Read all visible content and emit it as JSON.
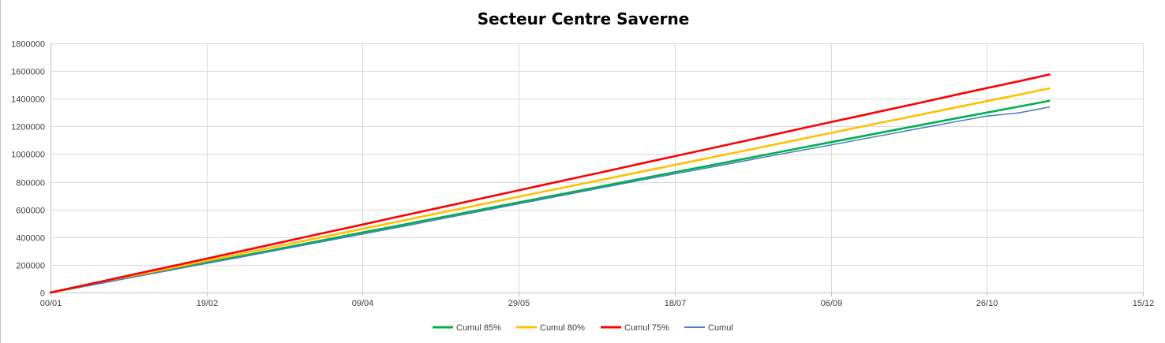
{
  "chart_data": {
    "type": "line",
    "title": "Secteur Centre Saverne",
    "xlabel": "",
    "ylabel": "",
    "x_tick_labels": [
      "00/01",
      "19/02",
      "09/04",
      "29/05",
      "18/07",
      "06/09",
      "26/10",
      "15/12"
    ],
    "x_tick_days": [
      0,
      50,
      100,
      150,
      200,
      250,
      300,
      350
    ],
    "xlim": [
      0,
      350
    ],
    "y_tick_labels": [
      "0",
      "200000",
      "400000",
      "600000",
      "800000",
      "1000000",
      "1200000",
      "1400000",
      "1600000",
      "1800000"
    ],
    "y_tick_values": [
      0,
      200000,
      400000,
      600000,
      800000,
      1000000,
      1200000,
      1400000,
      1600000,
      1800000
    ],
    "ylim": [
      0,
      1800000
    ],
    "grid": true,
    "legend_position": "bottom",
    "x_days": [
      0,
      10,
      20,
      30,
      40,
      50,
      60,
      70,
      80,
      90,
      100,
      110,
      120,
      130,
      140,
      150,
      160,
      170,
      180,
      190,
      200,
      210,
      220,
      230,
      240,
      250,
      260,
      270,
      280,
      290,
      300,
      310,
      320
    ],
    "series": [
      {
        "name": "Cumul 85%",
        "color": "#00b050",
        "values": [
          0,
          43000,
          86000,
          129000,
          172000,
          216000,
          259000,
          302000,
          346000,
          390000,
          434000,
          477000,
          521000,
          564000,
          608000,
          651000,
          695000,
          738000,
          782000,
          826000,
          869000,
          912000,
          956000,
          999000,
          1043000,
          1086000,
          1129000,
          1172000,
          1215000,
          1258000,
          1300000,
          1342000,
          1385000
        ]
      },
      {
        "name": "Cumul 80%",
        "color": "#ffc000",
        "values": [
          0,
          46000,
          92000,
          138000,
          184000,
          230000,
          276000,
          321000,
          368000,
          414000,
          460000,
          506000,
          553000,
          599000,
          646000,
          692000,
          738000,
          784000,
          830000,
          876000,
          922000,
          968000,
          1014000,
          1060000,
          1106000,
          1153000,
          1199000,
          1245000,
          1291000,
          1337000,
          1383000,
          1428000,
          1475000
        ]
      },
      {
        "name": "Cumul 75%",
        "color": "#ff0000",
        "values": [
          0,
          49000,
          98000,
          147000,
          196000,
          245000,
          294000,
          343000,
          393000,
          442000,
          491000,
          541000,
          590000,
          639000,
          689000,
          738000,
          788000,
          837000,
          886000,
          936000,
          985000,
          1034000,
          1083000,
          1132000,
          1182000,
          1231000,
          1280000,
          1329000,
          1378000,
          1428000,
          1477000,
          1525000,
          1575000
        ]
      },
      {
        "name": "Cumul",
        "color": "#4f81bd",
        "values": [
          0,
          42000,
          84000,
          126000,
          168000,
          210000,
          252000,
          294000,
          337000,
          380000,
          422000,
          465000,
          509000,
          553000,
          597000,
          641000,
          684000,
          728000,
          772000,
          815000,
          857000,
          899000,
          941000,
          983000,
          1025000,
          1066000,
          1108000,
          1150000,
          1192000,
          1234000,
          1275000,
          1297000,
          1340000
        ]
      }
    ]
  }
}
